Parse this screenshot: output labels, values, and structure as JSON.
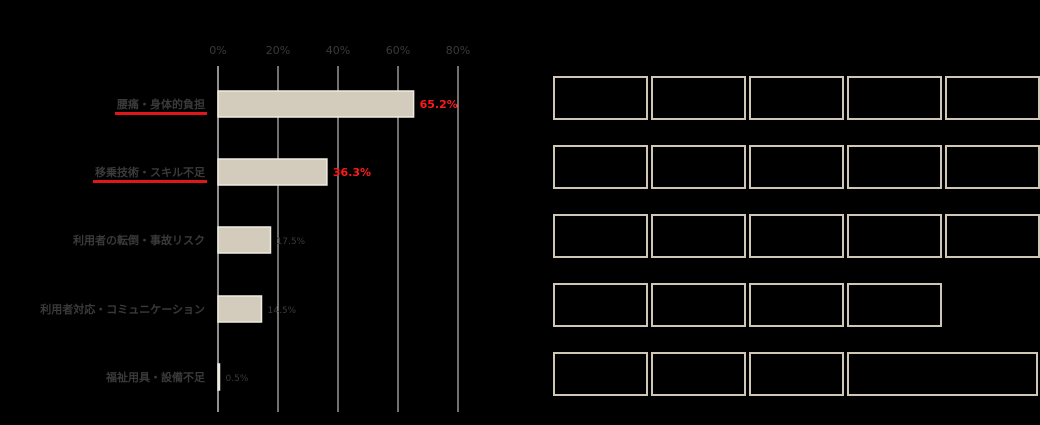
{
  "chart_data": {
    "type": "bar",
    "orientation": "horizontal",
    "categories": [
      "腰痛・身体的負担",
      "移乗技術・スキル不足",
      "利用者の転倒・事故リスク",
      "利用者対応・コミュニケーション",
      "福祉用具・設備不足"
    ],
    "values": [
      65.2,
      36.3,
      17.5,
      14.5,
      0.5
    ],
    "value_labels": [
      "65.2%",
      "36.3%",
      "17.5%",
      "14.5%",
      "0.5%"
    ],
    "highlighted": [
      true,
      true,
      false,
      false,
      false
    ],
    "x_ticks": [
      "0%",
      "20%",
      "40%",
      "60%",
      "80%"
    ],
    "xlim": [
      0,
      80
    ],
    "tick_position": "top",
    "grid": true,
    "bar_color": "#d3ccbd",
    "highlight_label_color": "#ff1a1a",
    "underline_color": "#e0161b",
    "title": "",
    "xlabel": "",
    "ylabel": ""
  },
  "box_grid": {
    "rows": [
      5,
      5,
      5,
      4,
      4
    ],
    "border_color": "#cfc6b6"
  }
}
